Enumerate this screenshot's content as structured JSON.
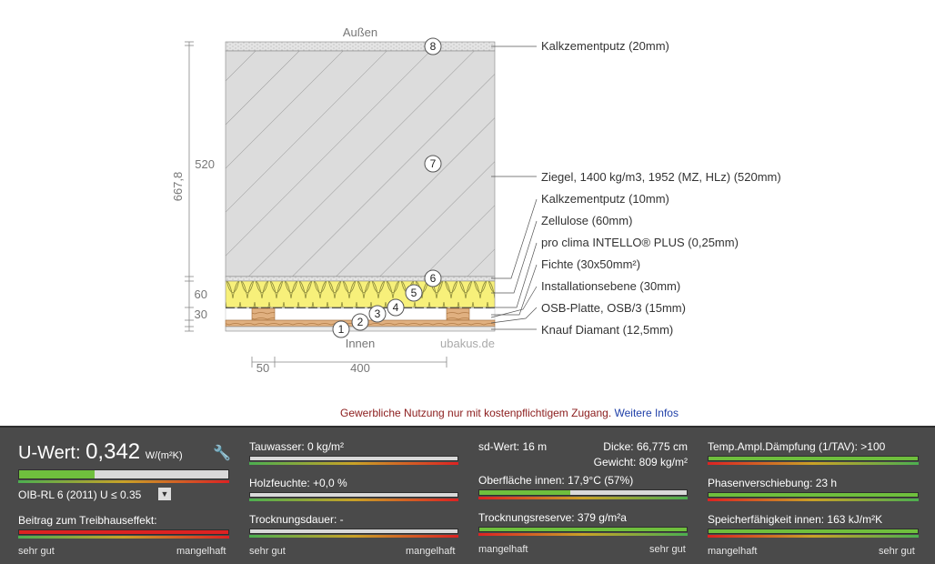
{
  "diagram": {
    "outside_label": "Außen",
    "inside_label": "Innen",
    "watermark": "ubakus.de",
    "dimensions": {
      "total": "667,8",
      "d520": "520",
      "d60": "60",
      "d30": "30",
      "h50": "50",
      "h400": "400"
    },
    "layers": [
      {
        "num": "8",
        "label": "Kalkzementputz (20mm)"
      },
      {
        "num": "7",
        "label": "Ziegel, 1400 kg/m3, 1952 (MZ, HLz) (520mm)"
      },
      {
        "num": "",
        "label": "Kalkzementputz (10mm)"
      },
      {
        "num": "6",
        "label": "Zellulose (60mm)"
      },
      {
        "num": "5",
        "label": "pro clima INTELLO® PLUS (0,25mm)"
      },
      {
        "num": "4",
        "label": "Fichte (30x50mm²)"
      },
      {
        "num": "3",
        "label": "Installationsebene (30mm)"
      },
      {
        "num": "2",
        "label": "OSB-Platte, OSB/3 (15mm)"
      },
      {
        "num": "1",
        "label": "Knauf Diamant (12,5mm)"
      }
    ]
  },
  "notice": {
    "text": "Gewerbliche Nutzung nur mit kostenpflichtigem Zugang.",
    "link": "Weitere Infos"
  },
  "panel": {
    "uwert": {
      "label": "U-Wert:",
      "value": "0,342",
      "unit": "W/(m²K)",
      "fill": 0.36,
      "standard": "OIB-RL 6 (2011) U ≤ 0.35",
      "treibhaus_label": "Beitrag zum Treibhauseffekt:",
      "scale_left": "sehr gut",
      "scale_right": "mangelhaft"
    },
    "col2": {
      "tauwasser": "Tauwasser: 0 kg/m²",
      "holzfeuchte": "Holzfeuchte: +0,0 %",
      "trocknungsdauer": "Trocknungsdauer: -",
      "scale_left": "sehr gut",
      "scale_right": "mangelhaft"
    },
    "col3": {
      "sdwert": "sd-Wert: 16 m",
      "dicke": "Dicke: 66,775 cm",
      "gewicht": "Gewicht: 809 kg/m²",
      "oberflaeche": "Oberfläche innen: 17,9°C (57%)",
      "oberflaeche_fill": 0.44,
      "trocknungsreserve": "Trocknungsreserve: 379 g/m²a",
      "scale_left": "mangelhaft",
      "scale_right": "sehr gut"
    },
    "col4": {
      "daempfung": "Temp.Ampl.Dämpfung (1/TAV): >100",
      "phasen": "Phasenverschiebung: 23 h",
      "speicher": "Speicherfähigkeit innen: 163 kJ/m²K",
      "scale_left": "mangelhaft",
      "scale_right": "sehr gut"
    },
    "colors": {
      "good": "#6fbf3d",
      "bad": "#dd2222"
    }
  }
}
